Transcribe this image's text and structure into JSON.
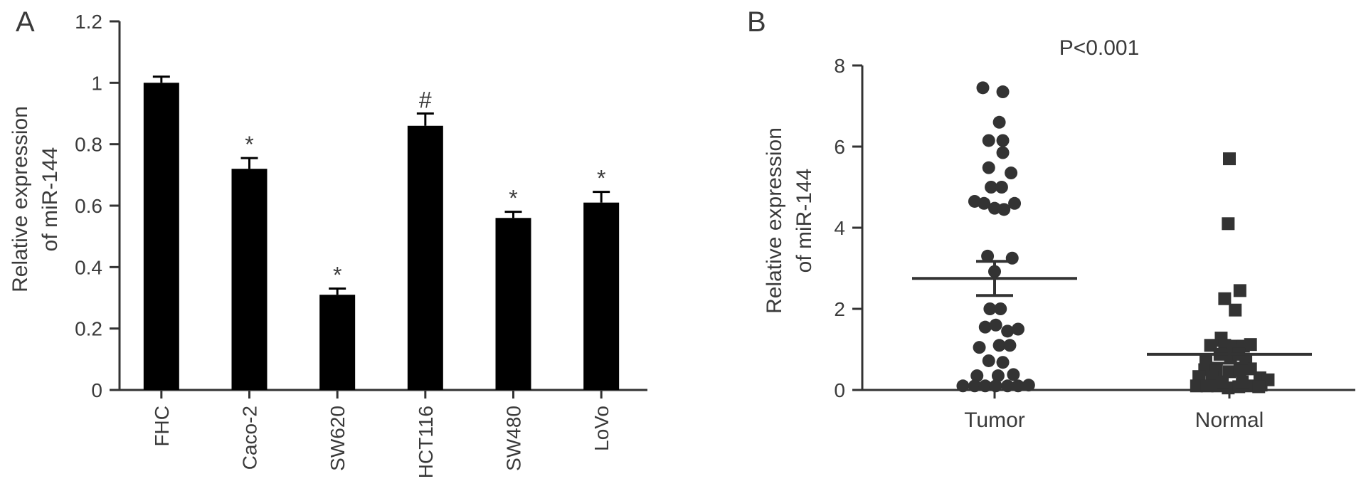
{
  "figure": {
    "panel_a_label": "A",
    "panel_b_label": "B"
  },
  "chart_data": [
    {
      "type": "bar",
      "panel": "A",
      "ylabel_line1": "Relative expression",
      "ylabel_line2": "of miR-144",
      "ylim": [
        0,
        1.2
      ],
      "yticks": [
        0,
        0.2,
        0.4,
        0.6,
        0.8,
        1,
        1.2
      ],
      "ytick_labels": [
        "0",
        "0.2",
        "0.4",
        "0.6",
        "0.8",
        "1",
        "1.2"
      ],
      "categories": [
        "FHC",
        "Caco-2",
        "SW620",
        "HCT116",
        "SW480",
        "LoVo"
      ],
      "values": [
        1.0,
        0.72,
        0.31,
        0.86,
        0.56,
        0.61
      ],
      "errors": [
        0.02,
        0.035,
        0.02,
        0.04,
        0.02,
        0.035
      ],
      "annotations": [
        "",
        "*",
        "*",
        "#",
        "*",
        "*"
      ],
      "bar_color": "#000000"
    },
    {
      "type": "scatter",
      "panel": "B",
      "title": "P<0.001",
      "ylabel_line1": "Relative expression",
      "ylabel_line2": "of miR-144",
      "ylim": [
        0,
        8
      ],
      "yticks": [
        0,
        2,
        4,
        6,
        8
      ],
      "ytick_labels": [
        "0",
        "2",
        "4",
        "6",
        "8"
      ],
      "categories": [
        "Tumor",
        "Normal"
      ],
      "series": [
        {
          "name": "Tumor",
          "marker": "circle",
          "color": "#333333",
          "mean": 2.75,
          "sem_upper": 3.17,
          "sem_lower": 2.33,
          "points": [
            [
              -0.1,
              7.45
            ],
            [
              0.07,
              7.35
            ],
            [
              0.04,
              6.6
            ],
            [
              -0.05,
              6.15
            ],
            [
              0.07,
              6.15
            ],
            [
              0.07,
              5.85
            ],
            [
              -0.05,
              5.48
            ],
            [
              0.14,
              5.35
            ],
            [
              -0.03,
              5.0
            ],
            [
              0.06,
              5.0
            ],
            [
              -0.17,
              4.65
            ],
            [
              -0.09,
              4.6
            ],
            [
              0.0,
              4.48
            ],
            [
              0.08,
              4.45
            ],
            [
              0.17,
              4.6
            ],
            [
              -0.06,
              3.3
            ],
            [
              0.15,
              3.25
            ],
            [
              0.0,
              2.92
            ],
            [
              -0.04,
              2.0
            ],
            [
              0.05,
              2.0
            ],
            [
              -0.08,
              1.55
            ],
            [
              0.01,
              1.6
            ],
            [
              0.11,
              1.45
            ],
            [
              0.2,
              1.5
            ],
            [
              -0.13,
              1.05
            ],
            [
              0.04,
              1.1
            ],
            [
              0.13,
              1.1
            ],
            [
              -0.05,
              0.72
            ],
            [
              0.07,
              0.68
            ],
            [
              -0.15,
              0.35
            ],
            [
              0.03,
              0.35
            ],
            [
              0.16,
              0.38
            ],
            [
              -0.27,
              0.1
            ],
            [
              -0.17,
              0.1
            ],
            [
              -0.08,
              0.1
            ],
            [
              0.01,
              0.1
            ],
            [
              0.11,
              0.1
            ],
            [
              0.2,
              0.1
            ],
            [
              0.29,
              0.12
            ]
          ]
        },
        {
          "name": "Normal",
          "marker": "square",
          "color": "#333333",
          "mean": 0.88,
          "sem_upper": 1.1,
          "sem_lower": 0.66,
          "points": [
            [
              0.0,
              5.7
            ],
            [
              -0.01,
              4.1
            ],
            [
              0.09,
              2.45
            ],
            [
              -0.04,
              2.25
            ],
            [
              0.05,
              1.97
            ],
            [
              -0.07,
              1.28
            ],
            [
              -0.16,
              1.1
            ],
            [
              -0.04,
              1.1
            ],
            [
              0.04,
              1.08
            ],
            [
              0.12,
              1.08
            ],
            [
              0.18,
              1.12
            ],
            [
              -0.08,
              0.88
            ],
            [
              0.01,
              0.85
            ],
            [
              0.08,
              0.88
            ],
            [
              -0.2,
              0.7
            ],
            [
              0.14,
              0.72
            ],
            [
              -0.21,
              0.5
            ],
            [
              -0.11,
              0.5
            ],
            [
              0.0,
              0.45
            ],
            [
              0.09,
              0.48
            ],
            [
              0.18,
              0.52
            ],
            [
              -0.26,
              0.33
            ],
            [
              0.26,
              0.3
            ],
            [
              -0.15,
              0.3
            ],
            [
              -0.28,
              0.1
            ],
            [
              -0.19,
              0.1
            ],
            [
              -0.1,
              0.1
            ],
            [
              -0.01,
              0.05
            ],
            [
              0.08,
              0.08
            ],
            [
              0.17,
              0.1
            ],
            [
              0.27,
              0.12
            ],
            [
              0.33,
              0.25
            ],
            [
              -0.06,
              0.2
            ],
            [
              0.11,
              0.2
            ],
            [
              0.25,
              0.08
            ]
          ]
        }
      ]
    }
  ]
}
